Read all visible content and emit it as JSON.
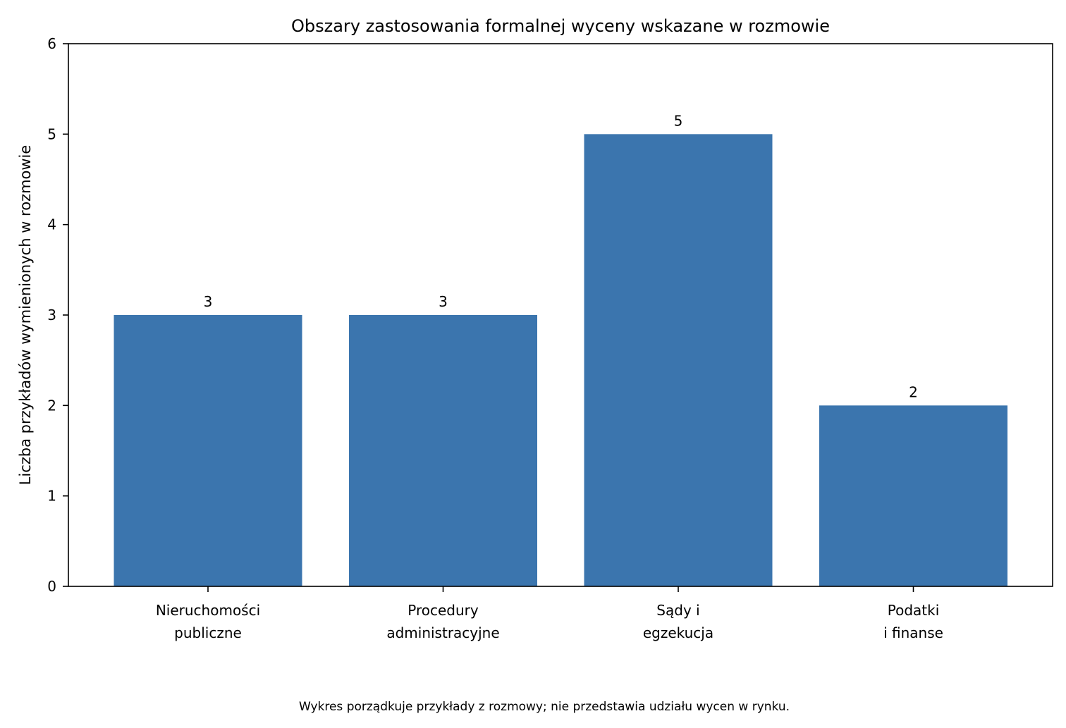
{
  "chart_data": {
    "type": "bar",
    "title": "Obszary zastosowania formalnej wyceny wskazane w rozmowie",
    "xlabel": "",
    "ylabel": "Liczba przykładów wymienionych w rozmowie",
    "categories": [
      [
        "Nieruchomości",
        "publiczne"
      ],
      [
        "Procedury",
        "administracyjne"
      ],
      [
        "Sądy i",
        "egzekucja"
      ],
      [
        "Podatki",
        "i finanse"
      ]
    ],
    "values": [
      3,
      3,
      5,
      2
    ],
    "data_labels": [
      "3",
      "3",
      "5",
      "2"
    ],
    "ylim": [
      0,
      6
    ],
    "yticks": [
      0,
      1,
      2,
      3,
      4,
      5,
      6
    ],
    "grid": false,
    "bar_color": "#3b75ae",
    "caption": "Wykres porządkuje przykłady z rozmowy; nie przedstawia udziału wycen w rynku."
  }
}
